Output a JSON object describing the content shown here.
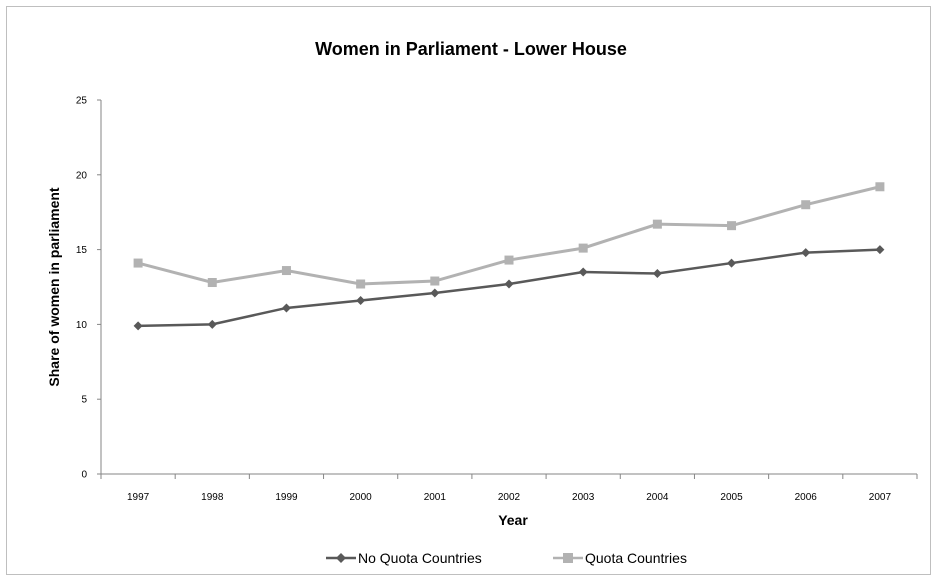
{
  "chart_data": {
    "type": "line",
    "title": "Women in Parliament - Lower House",
    "xlabel": "Year",
    "ylabel": "Share of women in parliament",
    "categories": [
      "1997",
      "1998",
      "1999",
      "2000",
      "2001",
      "2002",
      "2003",
      "2004",
      "2005",
      "2006",
      "2007"
    ],
    "ylim": [
      0,
      25
    ],
    "yticks": [
      "0",
      "5",
      "10",
      "15",
      "20",
      "25"
    ],
    "grid": false,
    "legend_position": "bottom",
    "series": [
      {
        "name": "No Quota Countries",
        "color": "#595959",
        "marker": "diamond",
        "values": [
          9.9,
          10.0,
          11.1,
          11.6,
          12.1,
          12.7,
          13.5,
          13.4,
          14.1,
          14.8,
          15.0
        ]
      },
      {
        "name": "Quota Countries",
        "color": "#b2b2b2",
        "marker": "square",
        "values": [
          14.1,
          12.8,
          13.6,
          12.7,
          12.9,
          14.3,
          15.1,
          16.7,
          16.6,
          18.0,
          19.2
        ]
      }
    ]
  }
}
